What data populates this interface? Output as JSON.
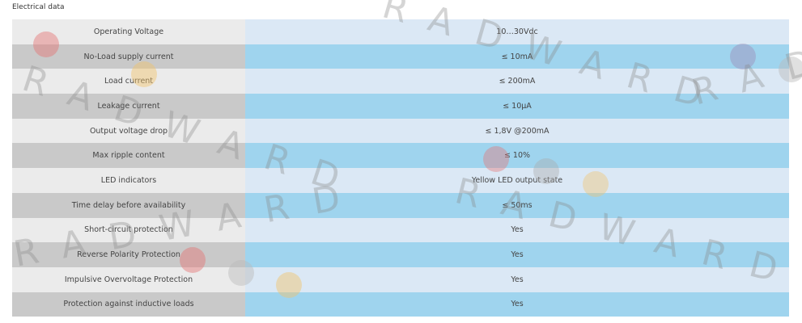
{
  "header": {
    "title": "Electrical data"
  },
  "watermark": "RADWARD",
  "table": {
    "rows": [
      [
        "Operating Voltage",
        "10…30Vdc"
      ],
      [
        "No-Load supply current",
        "≤ 10mA"
      ],
      [
        "Load current",
        "≤ 200mA"
      ],
      [
        "Leakage current",
        "≤ 10µA"
      ],
      [
        "Output voltage drop",
        "≤ 1,8V @200mA"
      ],
      [
        "Max ripple content",
        "≤ 10%"
      ],
      [
        "LED indicators",
        "Yellow LED output state"
      ],
      [
        "Time delay before availability",
        "≤ 50ms"
      ],
      [
        "Short-circuit protection",
        "Yes"
      ],
      [
        "Reverse Polarity Protection",
        "Yes"
      ],
      [
        "Impulsive Overvoltage Protection",
        "Yes"
      ],
      [
        "Protection against inductive loads",
        "Yes"
      ]
    ]
  }
}
